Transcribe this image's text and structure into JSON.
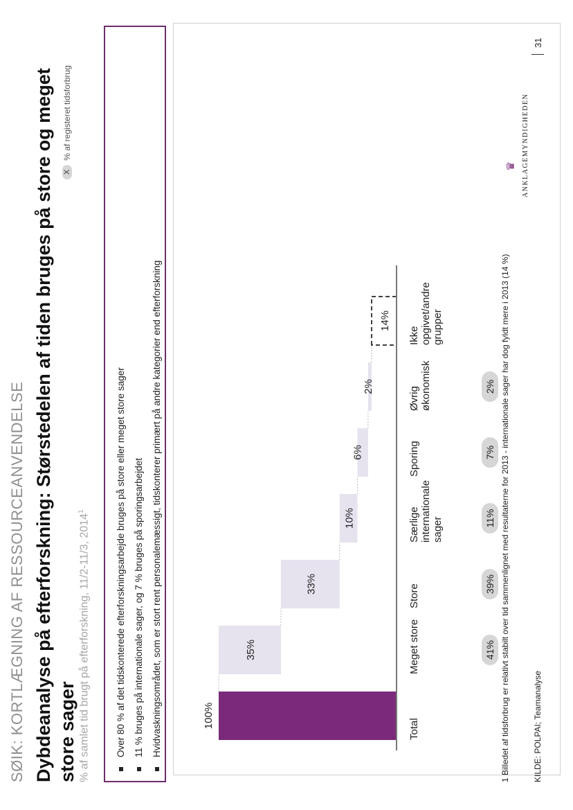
{
  "header": {
    "kicker": "SØIK: KORTLÆGNING AF RESSOURCEANVENDELSE",
    "title": "Dybdeanalyse på efterforskning: Størstedelen af tiden bruges på store og meget store sager",
    "subtitle": "% af samlet tid brugt på efterforskning, 11/2-11/3, 2014",
    "subtitle_ref": "1"
  },
  "legend": {
    "symbol": "X",
    "label": "% af registeret tidsforbrug"
  },
  "bullets": [
    "Over 80 % af det tidskonterede efterforskningsarbejde bruges på store eller meget store sager",
    "11 % bruges på internationale sager, og 7 % bruges på sporingsarbejdet",
    "Hvidvaskningsområdet, som er stort rent personalemæssigt, tidskonterer primært på andre kategorier end efterforskning"
  ],
  "chart_data": {
    "type": "bar",
    "subtype": "waterfall",
    "categories": [
      "Total",
      "Meget store",
      "Store",
      "Særlige internationale sager",
      "Sporing",
      "Øvrig økonomisk",
      "Ikke opgivet/andre grupper"
    ],
    "category_lines": [
      [
        "Total"
      ],
      [
        "Meget store"
      ],
      [
        "Store"
      ],
      [
        "Særlige",
        "internationale",
        "sager"
      ],
      [
        "Sporing"
      ],
      [
        "Øvrig",
        "økonomisk"
      ],
      [
        "Ikke",
        "opgivet/andre",
        "grupper"
      ]
    ],
    "values": [
      100,
      35,
      33,
      10,
      6,
      2,
      14
    ],
    "value_labels": [
      "100%",
      "35%",
      "33%",
      "10%",
      "6%",
      "2%",
      "14%"
    ],
    "registered_share_labels": [
      "",
      "41%",
      "39%",
      "11%",
      "7%",
      "2%",
      ""
    ],
    "dashed_categories": [
      "Ikke opgivet/andre grupper"
    ],
    "ylim": [
      0,
      100
    ],
    "colors": {
      "total": "#7b2a7b",
      "component": "#e6e2ee",
      "dashed": "#000000",
      "pill": "#d6d6d6"
    }
  },
  "footer": {
    "footnote": "1 Billedet af tidsforbrug er relativt stabilt over tid sammenlignet med resultaterne for 2013 - internationale sager har dog fyldt mere i 2013 (14 %)",
    "source": "KILDE: POLPAI; Teamanalyse",
    "brand": "ANKLAGEMYNDIGHEDEN",
    "page_number": "31"
  }
}
